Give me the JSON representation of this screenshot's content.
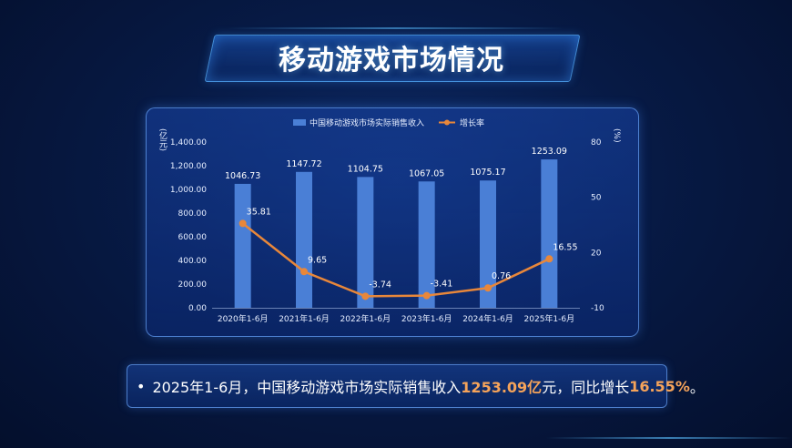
{
  "title": "移动游戏市场情况",
  "chart_data": {
    "type": "bar+line",
    "categories": [
      "2020年1-6月",
      "2021年1-6月",
      "2022年1-6月",
      "2023年1-6月",
      "2024年1-6月",
      "2025年1-6月"
    ],
    "series": [
      {
        "name": "中国移动游戏市场实际销售收入",
        "type": "bar",
        "axis": "left",
        "color": "#4a7fd6",
        "values": [
          1046.73,
          1147.72,
          1104.75,
          1067.05,
          1075.17,
          1253.09
        ],
        "labels": [
          "1046.73",
          "1147.72",
          "1104.75",
          "1067.05",
          "1075.17",
          "1253.09"
        ]
      },
      {
        "name": "增长率",
        "type": "line",
        "axis": "right",
        "color": "#e8873a",
        "values": [
          35.81,
          9.65,
          -3.74,
          -3.41,
          0.76,
          16.55
        ],
        "labels": [
          "35.81",
          "9.65",
          "-3.74",
          "-3.41",
          "0.76",
          "16.55"
        ]
      }
    ],
    "ylabel_left": "(亿元)",
    "ylabel_right": "(%)",
    "ylim_left": [
      0,
      1400
    ],
    "ylim_right": [
      -10,
      80
    ],
    "yticks_left": [
      "0.00",
      "200.00",
      "400.00",
      "600.00",
      "800.00",
      "1,000.00",
      "1,200.00",
      "1,400.00"
    ],
    "yticks_right": [
      "-10",
      "20",
      "50",
      "80"
    ],
    "ytick_values_left": [
      0,
      200,
      400,
      600,
      800,
      1000,
      1200,
      1400
    ],
    "ytick_values_right": [
      -10,
      20,
      50,
      80
    ],
    "legend_position": "top-center",
    "grid": false
  },
  "note": {
    "bullet": "•",
    "prefix": "2025年1-6月，中国移动游戏市场实际销售收入",
    "amount": "1253.09亿",
    "middle": "元，同比增长",
    "rate": "16.55%",
    "suffix": "。"
  }
}
